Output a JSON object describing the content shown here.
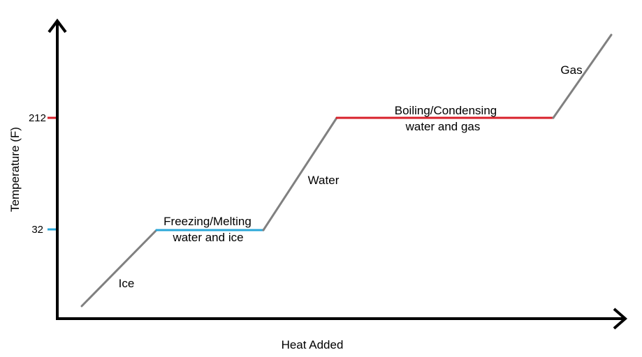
{
  "chart_data": {
    "type": "line",
    "title": "",
    "xlabel": "Heat Added",
    "ylabel": "Temperature (F)",
    "y_ticks": [
      {
        "value": 32,
        "label": "32",
        "color": "#2aa7d8"
      },
      {
        "value": 212,
        "label": "212",
        "color": "#d8202a"
      }
    ],
    "segments": [
      {
        "phase": "Ice",
        "label_lines": [
          "Ice"
        ],
        "type": "heating",
        "temp_start": 0,
        "temp_end": 32,
        "color": "#808080"
      },
      {
        "phase": "Freezing/Melting",
        "label_lines": [
          "Freezing/Melting",
          "water and ice"
        ],
        "type": "plateau",
        "temp_start": 32,
        "temp_end": 32,
        "color": "#2aa7d8"
      },
      {
        "phase": "Water",
        "label_lines": [
          "Water"
        ],
        "type": "heating",
        "temp_start": 32,
        "temp_end": 212,
        "color": "#808080"
      },
      {
        "phase": "Boiling/Condensing",
        "label_lines": [
          "Boiling/Condensing",
          "water and gas"
        ],
        "type": "plateau",
        "temp_start": 212,
        "temp_end": 212,
        "color": "#d8202a"
      },
      {
        "phase": "Gas",
        "label_lines": [
          "Gas"
        ],
        "type": "heating",
        "temp_start": 212,
        "temp_end": 300,
        "color": "#808080"
      }
    ],
    "grid": false,
    "axis_color": "#000000"
  }
}
